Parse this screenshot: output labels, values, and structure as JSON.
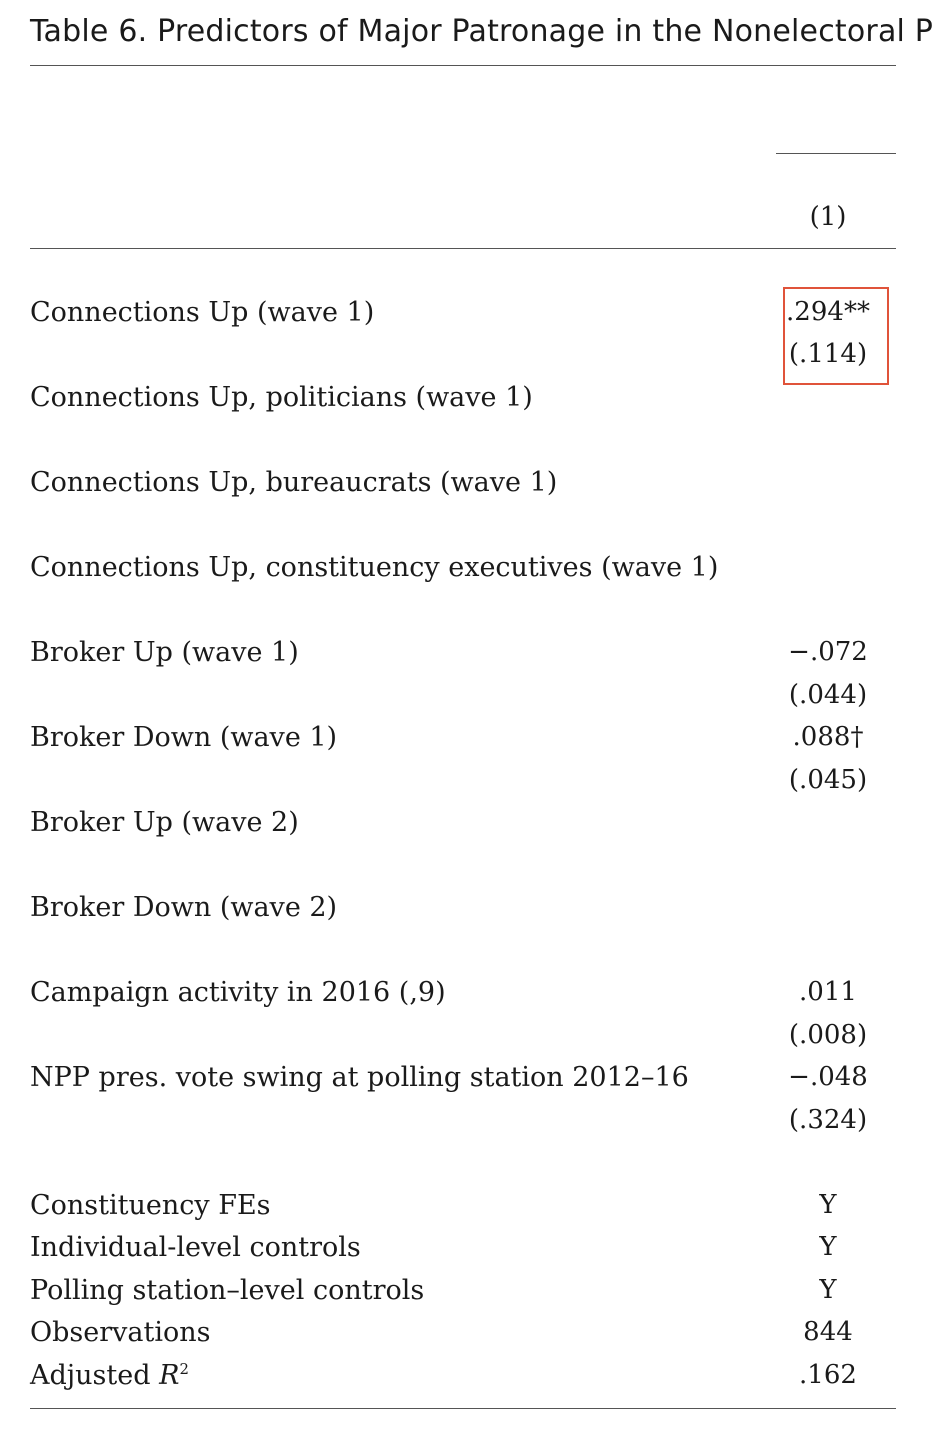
{
  "title": "Table 6. Predictors of Major Patronage in the Nonelectoral P",
  "column_headers": [
    "(1)"
  ],
  "rows": [
    {
      "label": "Connections Up (wave 1)",
      "coef": ".294**",
      "se": "(.114)"
    },
    {
      "label": "Connections Up, politicians (wave 1)",
      "coef": "",
      "se": ""
    },
    {
      "label": "Connections Up, bureaucrats (wave 1)",
      "coef": "",
      "se": ""
    },
    {
      "label": "Connections Up, constituency executives (wave 1)",
      "coef": "",
      "se": ""
    },
    {
      "label": "Broker Up (wave 1)",
      "coef": "−.072",
      "se": "(.044)"
    },
    {
      "label": "Broker Down (wave 1)",
      "coef": ".088†",
      "se": "(.045)"
    },
    {
      "label": "Broker Up (wave 2)",
      "coef": "",
      "se": ""
    },
    {
      "label": "Broker Down (wave 2)",
      "coef": "",
      "se": ""
    },
    {
      "label": "Campaign activity in 2016 (,9)",
      "coef": ".011",
      "se": "(.008)"
    },
    {
      "label": "NPP pres. vote swing at polling station 2012–16",
      "coef": "−.048",
      "se": "(.324)"
    }
  ],
  "footer_rows": [
    {
      "label": "Constituency FEs",
      "value": "Y"
    },
    {
      "label": "Individual-level controls",
      "value": "Y"
    },
    {
      "label": "Polling station–level controls",
      "value": "Y"
    },
    {
      "label": "Observations",
      "value": "844"
    },
    {
      "label_prefix": "Adjusted ",
      "label_italic": "R",
      "label_sup": "2",
      "value": ".162"
    }
  ],
  "highlight_color": "#e0533a"
}
